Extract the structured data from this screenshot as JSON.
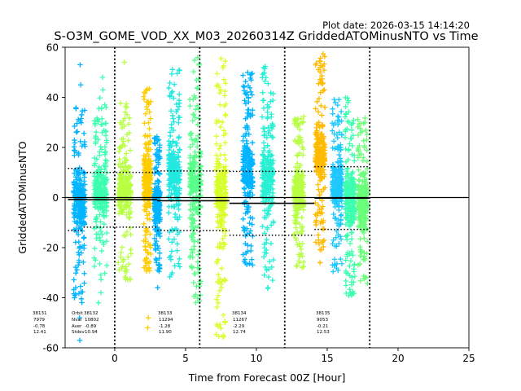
{
  "plot_date": "Plot date: 2026-03-15 14:14:20",
  "chart_data": {
    "type": "scatter",
    "title": "S-O3M_GOME_VOD_XX_M03_20260314Z GriddedATOMinusNTO vs Time",
    "xlabel": "Time from Forecast 00Z [Hour]",
    "ylabel": "GriddedATOMinusNTO",
    "xlim": [
      -3.5,
      25
    ],
    "ylim": [
      -60,
      60
    ],
    "xticks": [
      0,
      5,
      10,
      15,
      20,
      25
    ],
    "yticks": [
      -60,
      -40,
      -20,
      0,
      20,
      40,
      60
    ],
    "marker": "+",
    "zero_line": 0,
    "cycle_boundaries": [
      0,
      6,
      12,
      18
    ],
    "orbit_stats_labels": [
      "Orbit",
      "Nval",
      "Aver",
      "Stdev"
    ],
    "orbit_stats": [
      {
        "orbit": "38131",
        "nval": "7979",
        "mean": "-0.78",
        "stdev": "12.41",
        "t_start": -3.3,
        "t_end": -2.2
      },
      {
        "orbit": "38132",
        "nval": "10802",
        "mean": "-0.89",
        "stdev": "10.94",
        "t_start": -2.2,
        "t_end": 3.0
      },
      {
        "orbit": "38133",
        "nval": "11294",
        "mean": "-1.28",
        "stdev": "11.90",
        "t_start": 3.0,
        "t_end": 8.1
      },
      {
        "orbit": "38134",
        "nval": "11267",
        "mean": "-2.29",
        "stdev": "12.74",
        "t_start": 8.1,
        "t_end": 14.1
      },
      {
        "orbit": "38135",
        "nval": "9053",
        "mean": "-0.21",
        "stdev": "12.53",
        "t_start": 14.1,
        "t_end": 18.0
      }
    ],
    "series": [
      {
        "name": "strip",
        "center": -2.5,
        "halfwidth": 0.4,
        "ymin": -42,
        "ymax": 38,
        "outliers": [
          53,
          45,
          -57,
          -48
        ],
        "color": "#00b4ff"
      },
      {
        "name": "strip",
        "center": -1.0,
        "halfwidth": 0.45,
        "ymin": -34,
        "ymax": 40,
        "outliers": [
          48,
          43,
          -42,
          -38
        ],
        "color": "#3dffb0"
      },
      {
        "name": "strip",
        "center": 0.7,
        "halfwidth": 0.45,
        "ymin": -33,
        "ymax": 38,
        "outliers": [
          54
        ],
        "color": "#b8ff44"
      },
      {
        "name": "strip",
        "center": 2.3,
        "halfwidth": 0.25,
        "ymin": -30,
        "ymax": 44,
        "outliers": [
          -48,
          -52
        ],
        "color": "#ffcc00"
      },
      {
        "name": "strip",
        "center": 3.0,
        "halfwidth": 0.2,
        "ymin": -30,
        "ymax": 25,
        "outliers": [
          -36
        ],
        "color": "#00b4ff"
      },
      {
        "name": "strip",
        "center": 4.2,
        "halfwidth": 0.4,
        "ymin": -32,
        "ymax": 52,
        "outliers": [],
        "color": "#22e8e0"
      },
      {
        "name": "strip",
        "center": 5.7,
        "halfwidth": 0.4,
        "ymin": -43,
        "ymax": 57,
        "outliers": [],
        "color": "#5aff8c"
      },
      {
        "name": "strip",
        "center": 7.5,
        "halfwidth": 0.35,
        "ymin": -56,
        "ymax": 58,
        "outliers": [],
        "color": "#d8ff2a"
      },
      {
        "name": "strip",
        "center": 9.4,
        "halfwidth": 0.35,
        "ymin": -28,
        "ymax": 50,
        "outliers": [],
        "color": "#00b4ff"
      },
      {
        "name": "strip",
        "center": 10.8,
        "halfwidth": 0.4,
        "ymin": -40,
        "ymax": 54,
        "outliers": [],
        "color": "#28f0d4"
      },
      {
        "name": "strip",
        "center": 13.0,
        "halfwidth": 0.35,
        "ymin": -28,
        "ymax": 33,
        "outliers": [],
        "color": "#b8ff44"
      },
      {
        "name": "strip",
        "center": 14.5,
        "halfwidth": 0.35,
        "ymin": -22,
        "ymax": 58,
        "outliers": [
          -26
        ],
        "color": "#ffbb00"
      },
      {
        "name": "strip",
        "center": 15.7,
        "halfwidth": 0.35,
        "ymin": -30,
        "ymax": 40,
        "outliers": [],
        "color": "#1ec8ff"
      },
      {
        "name": "strip",
        "center": 16.6,
        "halfwidth": 0.35,
        "ymin": -40,
        "ymax": 40,
        "outliers": [],
        "color": "#3dffb0"
      },
      {
        "name": "strip",
        "center": 17.5,
        "halfwidth": 0.35,
        "ymin": -35,
        "ymax": 32,
        "outliers": [],
        "color": "#6aff7a"
      }
    ]
  }
}
